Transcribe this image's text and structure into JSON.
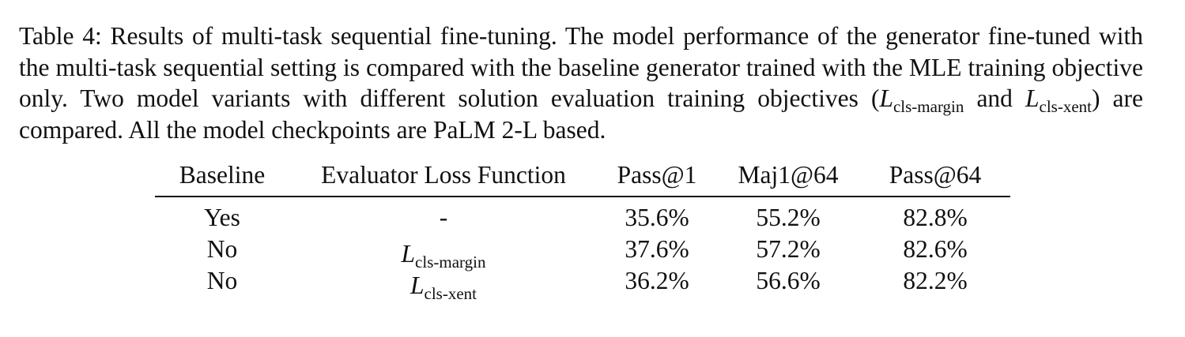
{
  "caption": {
    "label": "Table 4:",
    "text_part1": " Results of multi-task sequential fine-tuning. The model performance of the generator fine-tuned with the multi-task sequential setting is compared with the baseline generator trained with the MLE training objective only.  Two model variants with different solution evaluation training objectives (",
    "math1_main": "L",
    "math1_sub": "cls-margin",
    "text_part2": " and ",
    "math2_main": "L",
    "math2_sub": "cls-xent",
    "text_part3": ") are compared. All the model checkpoints are PaLM 2-L based."
  },
  "table": {
    "headers": [
      "Baseline",
      "Evaluator Loss Function",
      "Pass@1",
      "Maj1@64",
      "Pass@64"
    ],
    "rows": [
      {
        "baseline": "Yes",
        "loss_plain": "-",
        "loss_main": "",
        "loss_sub": "",
        "pass1": "35.6%",
        "maj64": "55.2%",
        "pass64": "82.8%"
      },
      {
        "baseline": "No",
        "loss_plain": "",
        "loss_main": "L",
        "loss_sub": "cls-margin",
        "pass1": "37.6%",
        "maj64": "57.2%",
        "pass64": "82.6%"
      },
      {
        "baseline": "No",
        "loss_plain": "",
        "loss_main": "L",
        "loss_sub": "cls-xent",
        "pass1": "36.2%",
        "maj64": "56.6%",
        "pass64": "82.2%"
      }
    ]
  }
}
